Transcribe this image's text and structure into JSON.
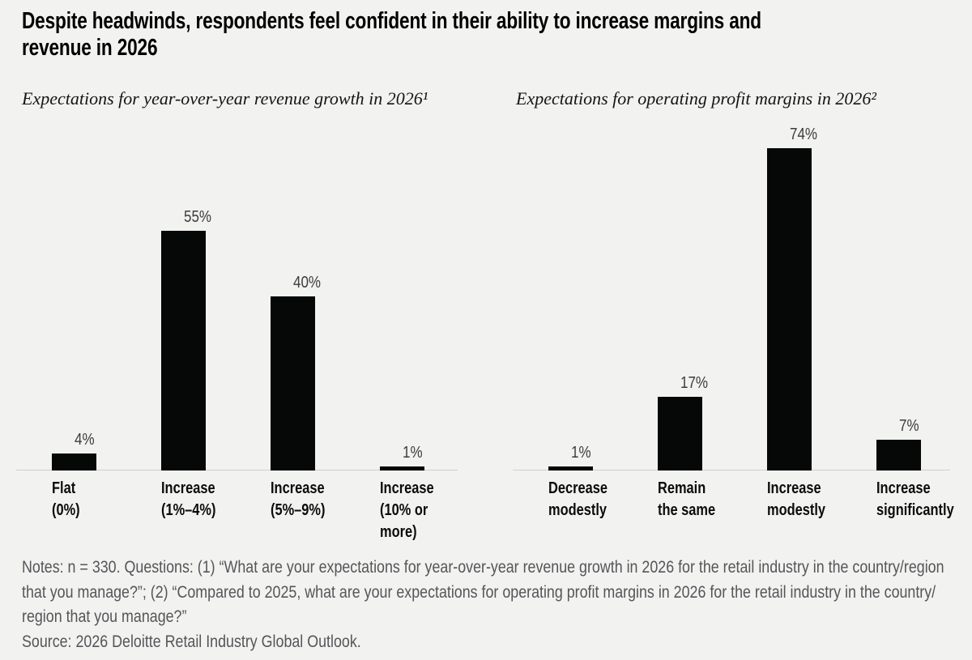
{
  "title": {
    "lines": [
      "Despite headwinds, respondents feel confident in their ability to increase margins and",
      "revenue in 2026"
    ]
  },
  "chart_data": [
    {
      "type": "bar",
      "title": "Expectations for year-over-year revenue growth in 2026¹",
      "categories": [
        "Flat\n(0%)",
        "Increase\n(1%–4%)",
        "Increase\n(5%–9%)",
        "Increase\n(10% or more)"
      ],
      "values": [
        4,
        55,
        40,
        1
      ],
      "value_labels": [
        "4%",
        "55%",
        "40%",
        "1%"
      ],
      "ylim": [
        0,
        78
      ],
      "xlabel": "",
      "ylabel": "",
      "grid": false,
      "legend": false,
      "bar_color": "#060808"
    },
    {
      "type": "bar",
      "title": "Expectations for operating profit margins in 2026²",
      "categories": [
        "Decrease\nmodestly",
        "Remain\nthe same",
        "Increase\nmodestly",
        "Increase\nsignificantly"
      ],
      "values": [
        1,
        17,
        74,
        7
      ],
      "value_labels": [
        "1%",
        "17%",
        "74%",
        "7%"
      ],
      "ylim": [
        0,
        78
      ],
      "xlabel": "",
      "ylabel": "",
      "grid": false,
      "legend": false,
      "bar_color": "#060808"
    }
  ],
  "notes": {
    "lines": [
      "Notes: n = 330. Questions: (1) “What are your expectations for year-over-year revenue growth in 2026 for the retail industry in the country/region",
      "that you manage?”; (2) “Compared to 2025, what are your expectations for operating profit margins in 2026 for the retail industry in the country/",
      "region that you manage?”"
    ]
  },
  "source": "Source: 2026 Deloitte Retail Industry Global Outlook.",
  "colors": {
    "background": "#f2f2f0",
    "bar": "#060808",
    "value_label": "#3c3c3e",
    "category_label": "#0c0c0c",
    "notes_text": "#55555a",
    "baseline": "#cfcfcc"
  }
}
